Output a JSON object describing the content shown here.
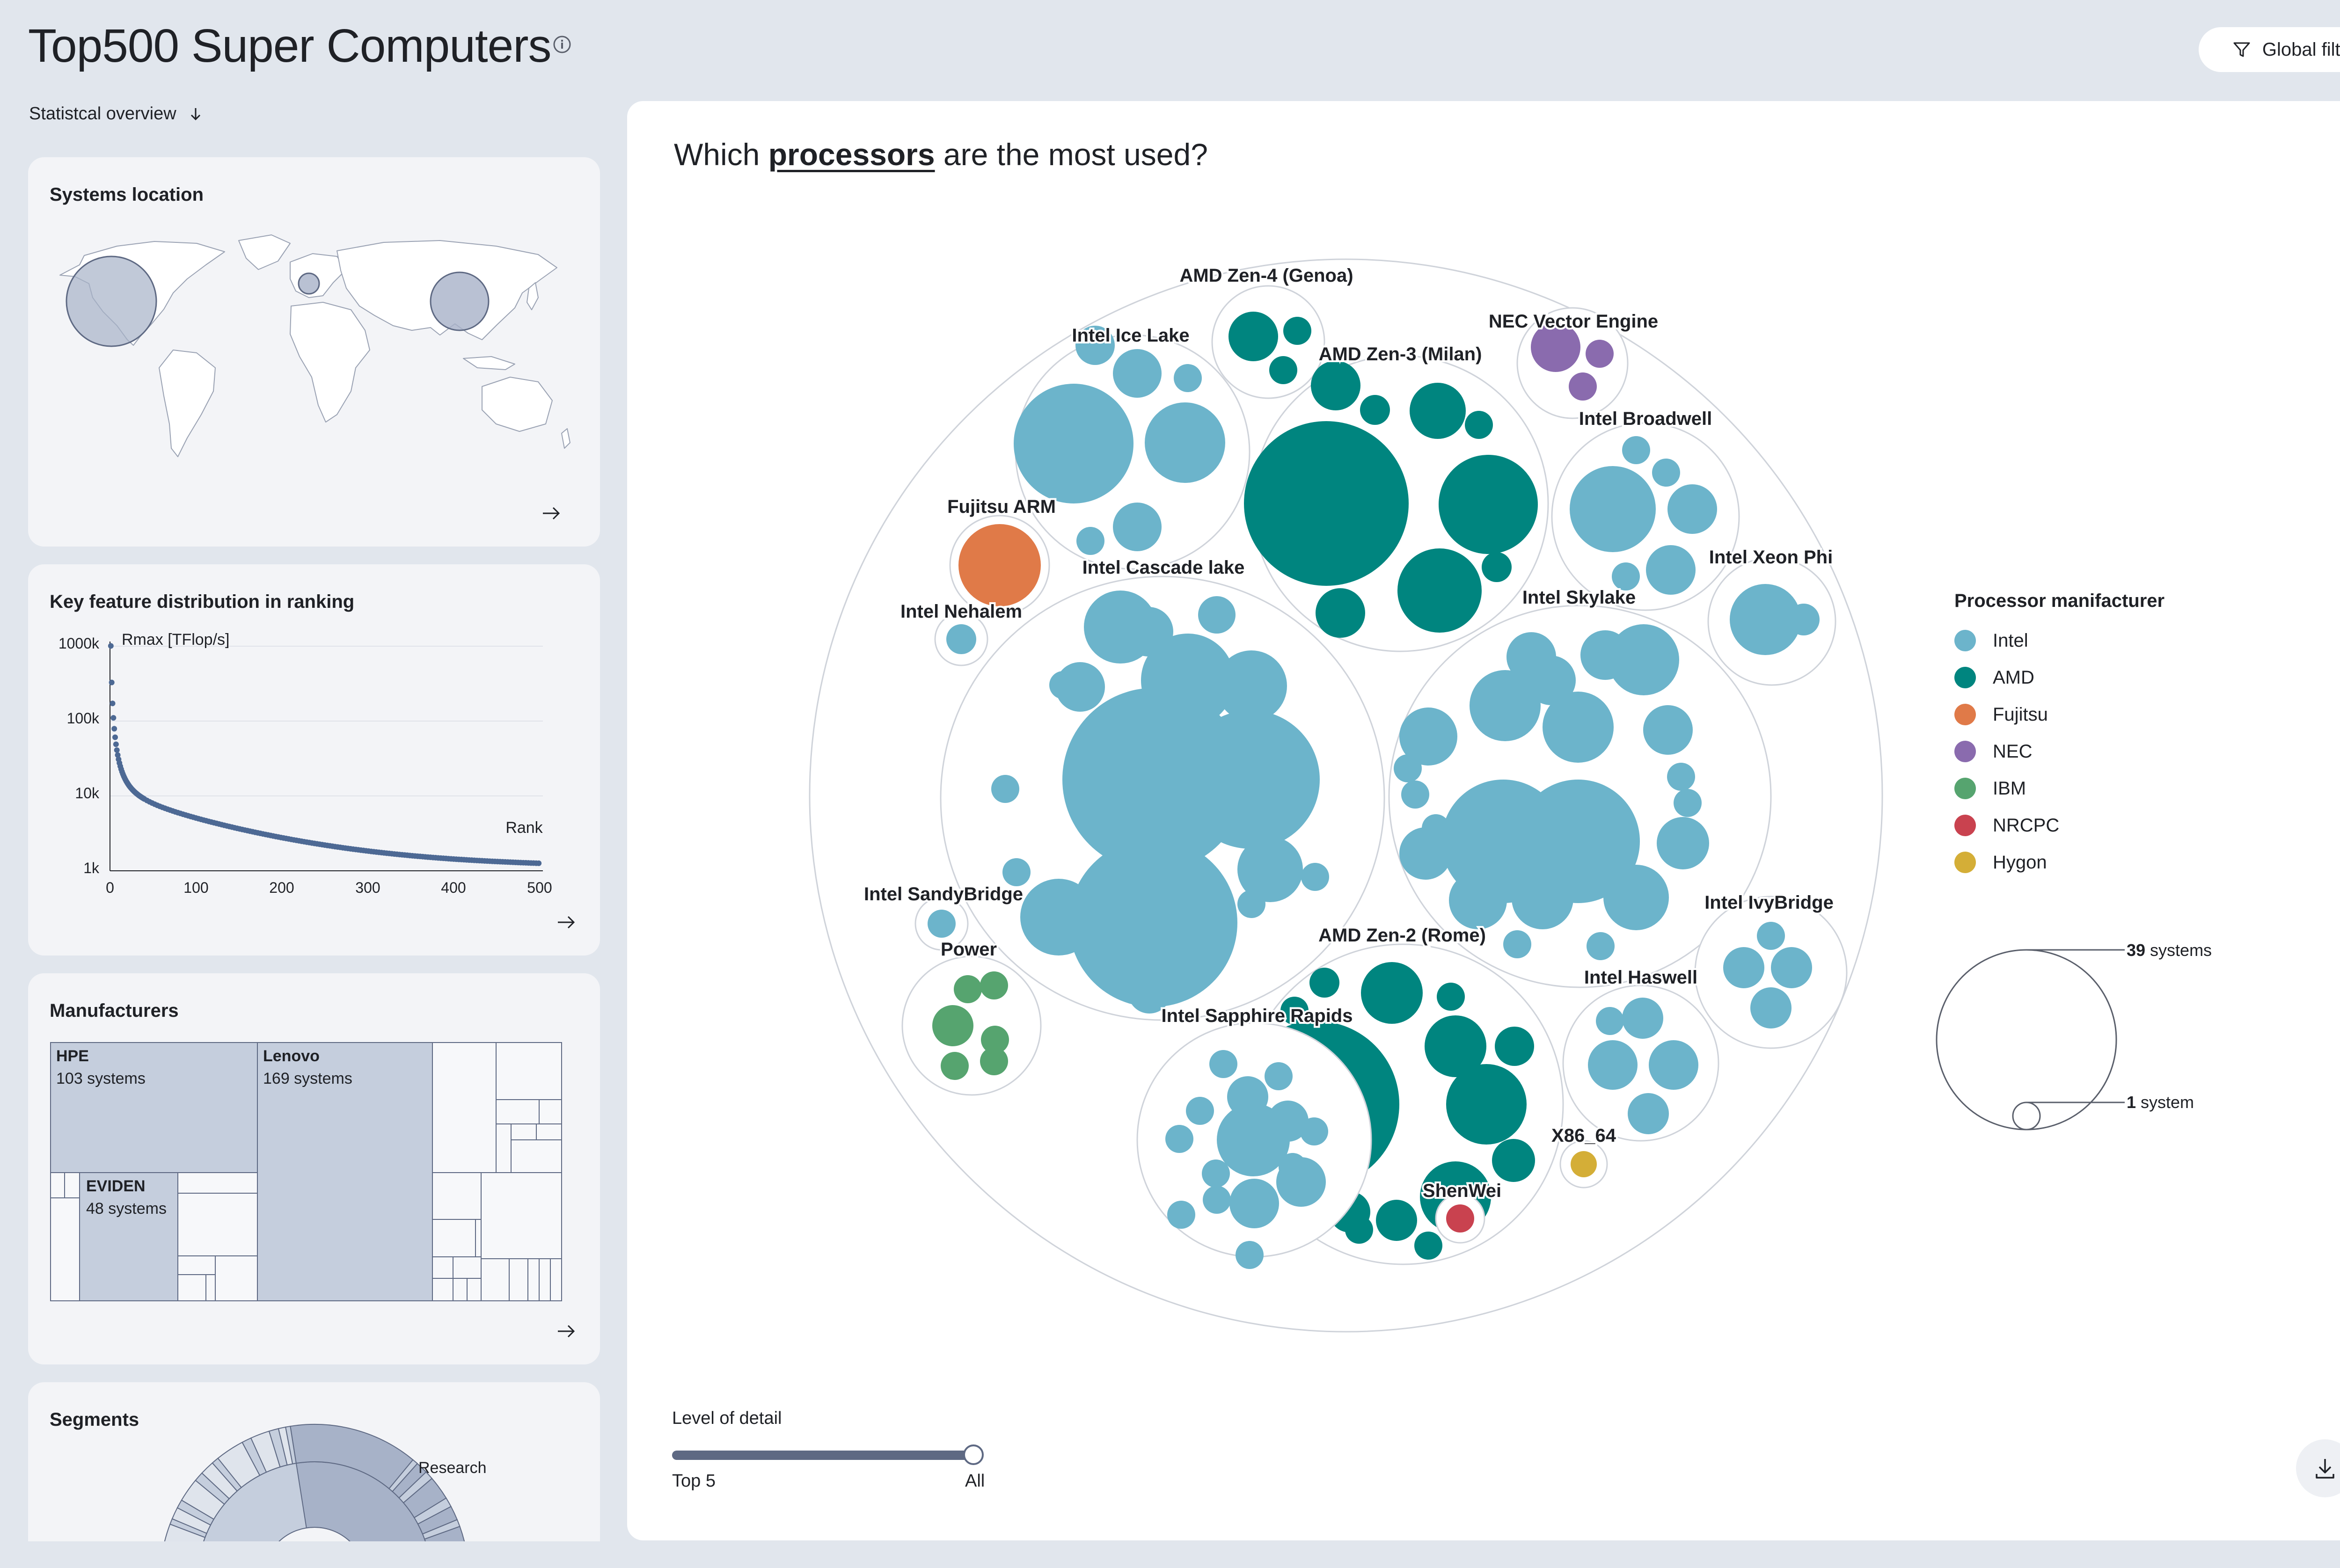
{
  "header": {
    "title": "Top500 Super Computers",
    "filters_label": "Global filters",
    "overview_label": "Statistcal overview"
  },
  "cards": {
    "location": {
      "title": "Systems location"
    },
    "distribution": {
      "title": "Key feature distribution in ranking",
      "y_label": "Rmax [TFlop/s]",
      "x_label": "Rank",
      "y_ticks": [
        "1000k",
        "100k",
        "10k",
        "1k"
      ],
      "x_ticks": [
        "0",
        "100",
        "200",
        "300",
        "400",
        "500"
      ]
    },
    "manufacturers": {
      "title": "Manufacturers",
      "items": [
        {
          "name": "HPE",
          "count": "103 systems"
        },
        {
          "name": "Lenovo",
          "count": "169 systems"
        },
        {
          "name": "EVIDEN",
          "count": "48 systems"
        }
      ]
    },
    "segments": {
      "title": "Segments",
      "label": "Research"
    }
  },
  "main": {
    "question_pre": "Which ",
    "question_kw": "processors",
    "question_post": " are the most used?",
    "legend_title": "Processor manifacturer",
    "size_legend": {
      "large_value": "39",
      "large_unit": " systems",
      "small_value": "1",
      "small_unit": " system"
    },
    "level_of_detail": {
      "label": "Level of detail",
      "min": "Top 5",
      "max": "All",
      "value": 1.0
    }
  },
  "chart_data": {
    "type": "packed-bubble",
    "size_legend_systems": [
      39,
      1
    ],
    "manufacturers": [
      {
        "name": "Intel",
        "color": "#6cb4cb"
      },
      {
        "name": "AMD",
        "color": "#00857f"
      },
      {
        "name": "Fujitsu",
        "color": "#e07a48"
      },
      {
        "name": "NEC",
        "color": "#8a6bae"
      },
      {
        "name": "IBM",
        "color": "#56a46f"
      },
      {
        "name": "NRCPC",
        "color": "#c9424f"
      },
      {
        "name": "Hygon",
        "color": "#d4ae37"
      }
    ],
    "groups": [
      {
        "name": "AMD Zen-4 (Genoa)",
        "manufacturer": "AMD"
      },
      {
        "name": "Intel Ice Lake",
        "manufacturer": "Intel"
      },
      {
        "name": "AMD Zen-3 (Milan)",
        "manufacturer": "AMD"
      },
      {
        "name": "NEC Vector Engine",
        "manufacturer": "NEC"
      },
      {
        "name": "Intel Broadwell",
        "manufacturer": "Intel"
      },
      {
        "name": "Fujitsu ARM",
        "manufacturer": "Fujitsu"
      },
      {
        "name": "Intel Cascade lake",
        "manufacturer": "Intel"
      },
      {
        "name": "Intel Xeon Phi",
        "manufacturer": "Intel"
      },
      {
        "name": "Intel Nehalem",
        "manufacturer": "Intel"
      },
      {
        "name": "Intel Skylake",
        "manufacturer": "Intel"
      },
      {
        "name": "Intel SandyBridge",
        "manufacturer": "Intel"
      },
      {
        "name": "Power",
        "manufacturer": "IBM"
      },
      {
        "name": "Intel IvyBridge",
        "manufacturer": "Intel"
      },
      {
        "name": "AMD Zen-2 (Rome)",
        "manufacturer": "AMD"
      },
      {
        "name": "Intel Haswell",
        "manufacturer": "Intel"
      },
      {
        "name": "Intel Sapphire Rapids",
        "manufacturer": "Intel"
      },
      {
        "name": "X86_64",
        "manufacturer": "Hygon"
      },
      {
        "name": "ShenWei",
        "manufacturer": "NRCPC"
      }
    ]
  }
}
